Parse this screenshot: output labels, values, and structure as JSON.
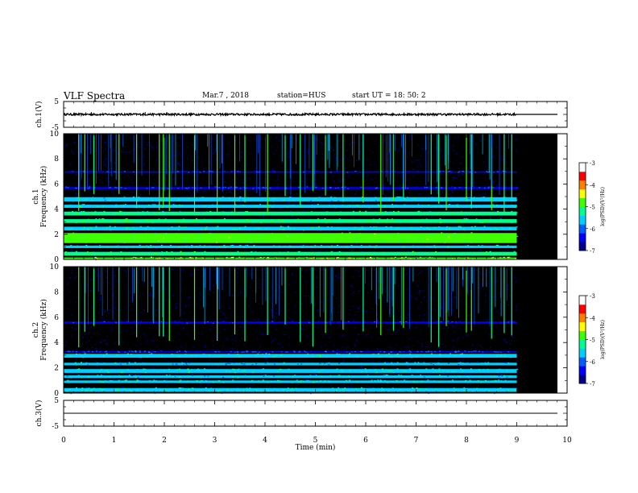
{
  "header": {
    "title": "VLF Spectra",
    "date": "Mar.7 , 2018",
    "station": "station=HUS",
    "start": "start UT = 18: 50: 2"
  },
  "chart_data": [
    {
      "type": "line",
      "name": "ch1-waveform",
      "ylabel": "ch.1(V)",
      "ylim": [
        -5,
        5
      ],
      "yticks": [
        "5",
        "-5"
      ],
      "xlim": [
        0,
        10
      ],
      "data_end_min": 9.0,
      "baseline_after_end": 0,
      "amplitude_approx": 0.4
    },
    {
      "type": "heatmap",
      "name": "ch1-spectrogram",
      "ylabel_top": "ch.1",
      "ylabel": "Frequency (kHz)",
      "ylim": [
        0,
        10
      ],
      "yticks": [
        "0",
        "2",
        "4",
        "6",
        "8",
        "10"
      ],
      "xlim": [
        0,
        10
      ],
      "data_end_min": 9.0,
      "colorbar": {
        "label": "log(PSD)(V²/Hz)",
        "range": [
          -7,
          -3
        ],
        "ticks": [
          "-3",
          "-4",
          "-5",
          "-6",
          "-7"
        ]
      },
      "bands_khz": [
        {
          "f0": 0.0,
          "f1": 0.15,
          "level": -4.8
        },
        {
          "f0": 0.3,
          "f1": 0.6,
          "level": -5.2
        },
        {
          "f0": 0.9,
          "f1": 1.1,
          "level": -5.6
        },
        {
          "f0": 1.3,
          "f1": 2.1,
          "level": -5.0
        },
        {
          "f0": 2.3,
          "f1": 2.6,
          "level": -5.4
        },
        {
          "f0": 2.9,
          "f1": 3.2,
          "level": -5.1
        },
        {
          "f0": 3.5,
          "f1": 3.8,
          "level": -5.3
        },
        {
          "f0": 4.1,
          "f1": 4.35,
          "level": -5.6
        },
        {
          "f0": 4.6,
          "f1": 4.95,
          "level": -5.7
        },
        {
          "f0": 5.6,
          "f1": 5.75,
          "level": -6.3
        },
        {
          "f0": 6.9,
          "f1": 7.0,
          "level": -6.4
        }
      ],
      "sferic_times_min": [
        0.3,
        0.42,
        0.6,
        1.1,
        1.45,
        1.9,
        1.98,
        2.1,
        2.6,
        3.05,
        3.4,
        3.6,
        4.05,
        4.4,
        4.7,
        4.95,
        5.2,
        5.55,
        5.95,
        6.3,
        6.55,
        6.75,
        7.3,
        7.45,
        7.6,
        8.0,
        8.1,
        8.5,
        8.75,
        8.9
      ]
    },
    {
      "type": "heatmap",
      "name": "ch2-spectrogram",
      "ylabel_top": "ch.2",
      "ylabel": "Frequency (kHz)",
      "ylim": [
        0,
        10
      ],
      "yticks": [
        "0",
        "2",
        "4",
        "6",
        "8",
        "10"
      ],
      "xlim": [
        0,
        10
      ],
      "data_end_min": 9.0,
      "colorbar": {
        "label": "log(PSD)(V²/Hz)",
        "range": [
          -7,
          -3
        ],
        "ticks": [
          "-3",
          "-4",
          "-5",
          "-6",
          "-7"
        ]
      },
      "bands_khz": [
        {
          "f0": 0.1,
          "f1": 0.4,
          "level": -5.4
        },
        {
          "f0": 0.8,
          "f1": 1.0,
          "level": -5.6
        },
        {
          "f0": 1.2,
          "f1": 1.4,
          "level": -5.7
        },
        {
          "f0": 1.6,
          "f1": 1.9,
          "level": -5.5
        },
        {
          "f0": 2.2,
          "f1": 2.4,
          "level": -5.8
        },
        {
          "f0": 2.8,
          "f1": 3.1,
          "level": -5.6
        },
        {
          "f0": 3.2,
          "f1": 3.3,
          "level": -6.2
        },
        {
          "f0": 5.5,
          "f1": 5.65,
          "level": -6.5
        }
      ],
      "sferic_times_min": [
        0.3,
        0.42,
        0.6,
        1.1,
        1.45,
        1.9,
        1.98,
        2.1,
        2.6,
        3.05,
        3.4,
        3.6,
        4.05,
        4.4,
        4.7,
        4.95,
        5.2,
        5.55,
        5.95,
        6.3,
        6.55,
        6.75,
        7.3,
        7.45,
        7.6,
        8.0,
        8.1,
        8.5,
        8.75,
        8.9
      ]
    },
    {
      "type": "line",
      "name": "ch3-waveform",
      "ylabel": "ch.3(V)",
      "ylim": [
        -5,
        5
      ],
      "yticks": [
        "5",
        "-5"
      ],
      "xlim": [
        0,
        10
      ],
      "values_constant": 0
    }
  ],
  "xaxis": {
    "label": "Time (min)",
    "ticks": [
      "0",
      "1",
      "2",
      "3",
      "4",
      "5",
      "6",
      "7",
      "8",
      "9",
      "10"
    ]
  },
  "colors": {
    "background_spectrogram": "#000000",
    "colormap": [
      "#00008f",
      "#0000ff",
      "#0060ff",
      "#00d0ff",
      "#00ff90",
      "#40ff00",
      "#ffff00",
      "#ff8000",
      "#ff0000",
      "#ffffff"
    ]
  }
}
